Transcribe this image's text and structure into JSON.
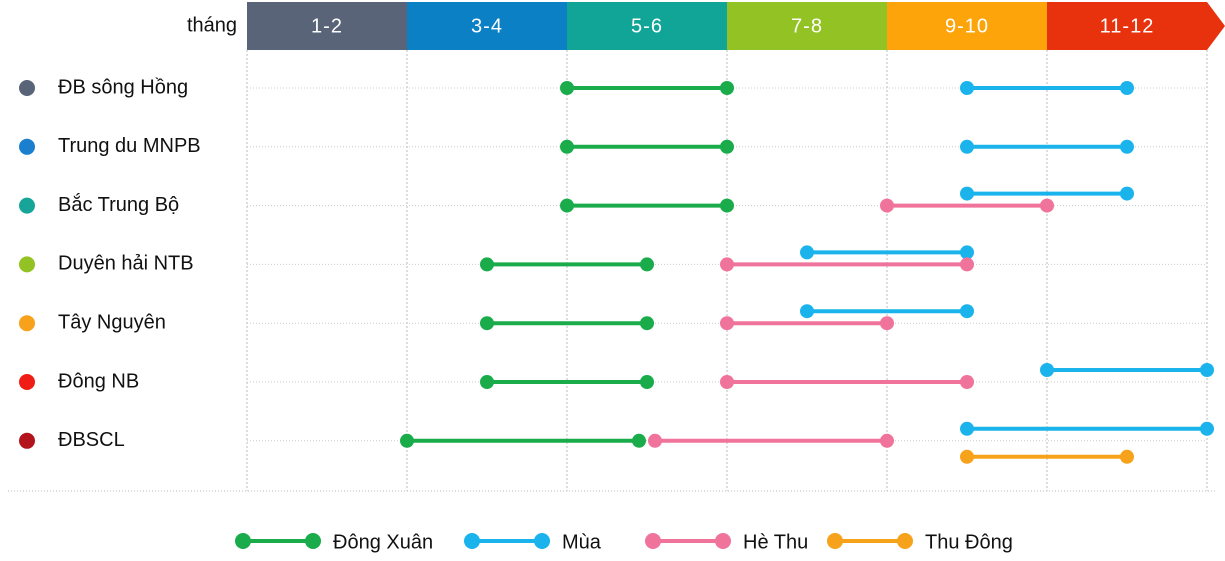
{
  "chart_data": {
    "type": "dumbbell",
    "x_label": "tháng",
    "periods": [
      "1-2",
      "3-4",
      "5-6",
      "7-8",
      "9-10",
      "11-12"
    ],
    "period_colors": [
      "#5a6478",
      "#0b80c4",
      "#10a597",
      "#93c224",
      "#fca40a",
      "#e7320d"
    ],
    "categories": [
      "ĐB sông Hồng",
      "Trung du MNPB",
      "Bắc Trung Bộ",
      "Duyên hải NTB",
      "Tây Nguyên",
      "Đông NB",
      "ĐBSCL"
    ],
    "category_colors": [
      "#5a6478",
      "#1a7fcf",
      "#17a59a",
      "#93c224",
      "#f8a11b",
      "#f01d16",
      "#b3131a"
    ],
    "xlim": [
      0,
      12
    ],
    "xticks": [
      0,
      2,
      4,
      6,
      8,
      10,
      12
    ],
    "grid": true,
    "series": [
      {
        "name": "Đông Xuân",
        "color": "#1aab4b",
        "values": [
          [
            4,
            6
          ],
          [
            4,
            6
          ],
          [
            4,
            6
          ],
          [
            3,
            5
          ],
          [
            3,
            5
          ],
          [
            3,
            5
          ],
          [
            2,
            4.9
          ]
        ]
      },
      {
        "name": "Mùa",
        "color": "#1ab3ec",
        "values": [
          [
            9,
            11
          ],
          [
            9,
            11
          ],
          [
            9,
            11
          ],
          [
            7,
            9
          ],
          [
            7,
            9
          ],
          [
            10,
            12
          ],
          [
            9,
            12
          ]
        ]
      },
      {
        "name": "Hè Thu",
        "color": "#f0739c",
        "values": [
          null,
          null,
          [
            8,
            10
          ],
          [
            6,
            9
          ],
          [
            6,
            8
          ],
          [
            6,
            9
          ],
          [
            5.1,
            8
          ]
        ]
      },
      {
        "name": "Thu Đông",
        "color": "#f7a21b",
        "values": [
          null,
          null,
          null,
          null,
          null,
          null,
          [
            9,
            11
          ]
        ]
      }
    ]
  }
}
